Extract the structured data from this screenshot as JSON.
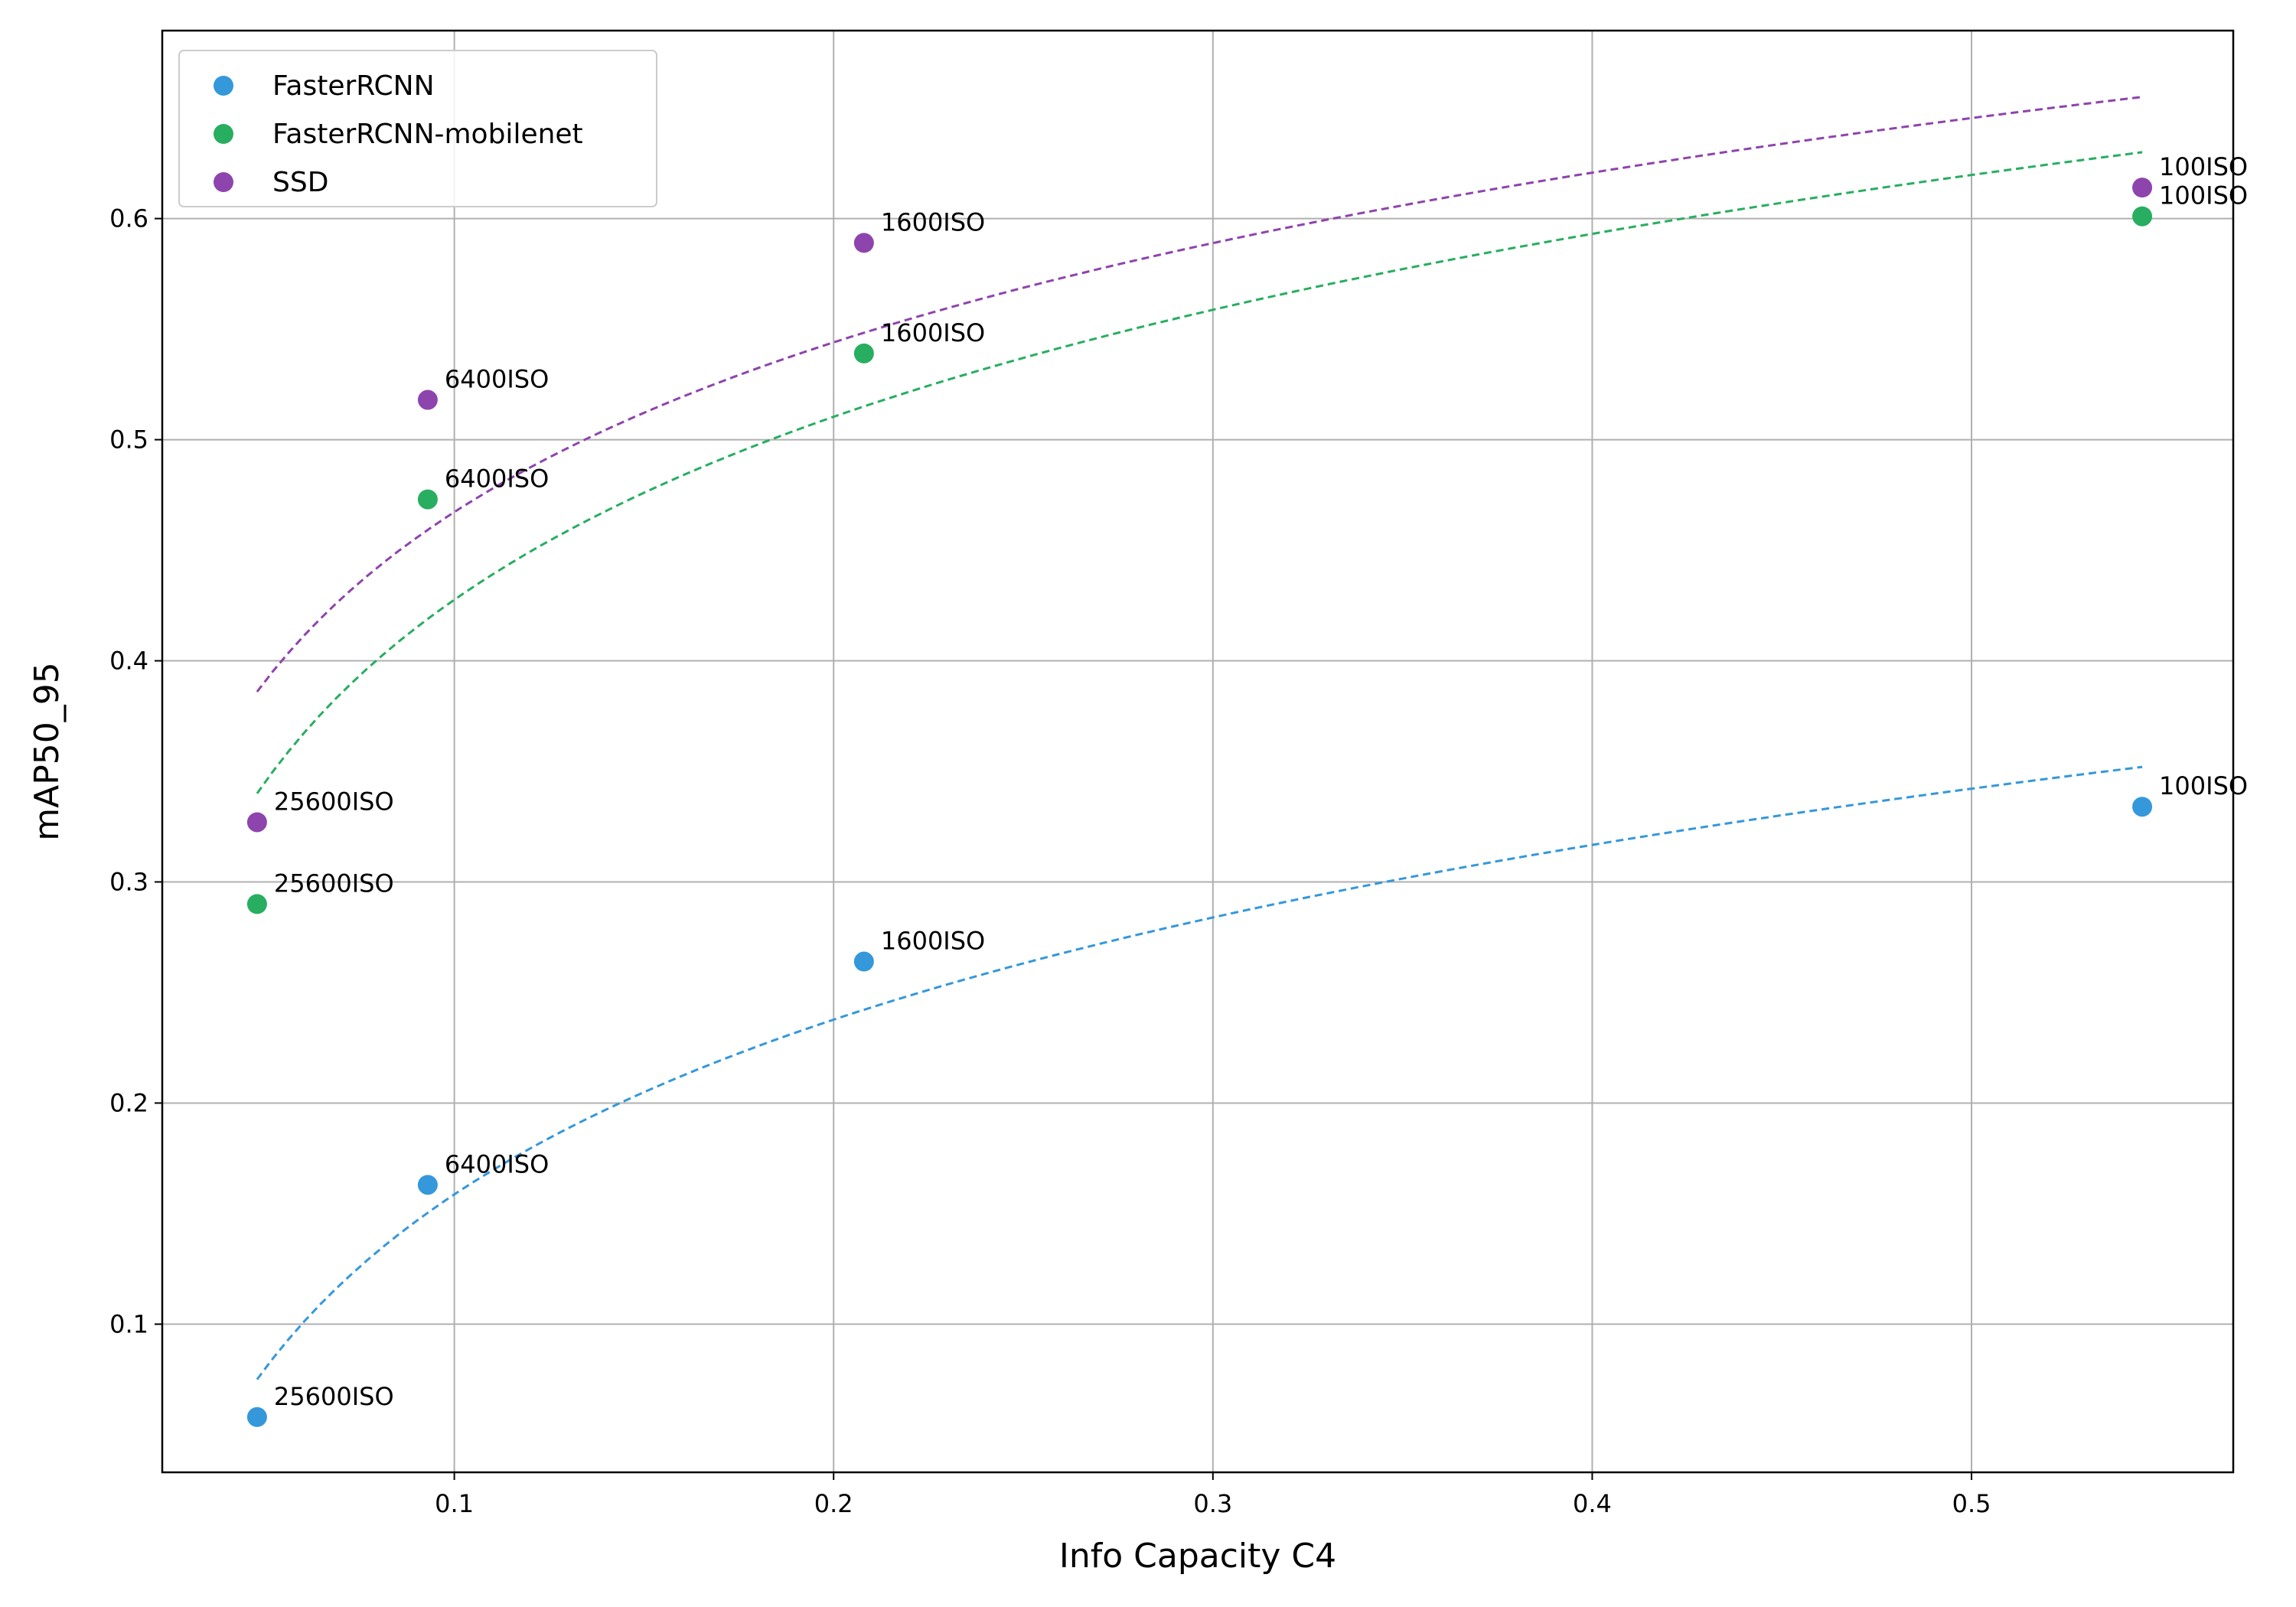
{
  "chart_data": {
    "type": "scatter",
    "title": "",
    "xlabel": "Info Capacity C4",
    "ylabel": "mAP50_95",
    "xlim": [
      0.023,
      0.569
    ],
    "ylim": [
      0.033,
      0.685
    ],
    "xticks": [
      0.1,
      0.2,
      0.3,
      0.4,
      0.5
    ],
    "xtick_labels": [
      "0.1",
      "0.2",
      "0.3",
      "0.4",
      "0.5"
    ],
    "yticks": [
      0.1,
      0.2,
      0.3,
      0.4,
      0.5,
      0.6
    ],
    "ytick_labels": [
      "0.1",
      "0.2",
      "0.3",
      "0.4",
      "0.5",
      "0.6"
    ],
    "grid": true,
    "legend_position": "top-left",
    "series": [
      {
        "name": "FasterRCNN",
        "color": "#3498db",
        "points": [
          {
            "x": 0.048,
            "y": 0.058,
            "label": "25600ISO"
          },
          {
            "x": 0.093,
            "y": 0.163,
            "label": "6400ISO"
          },
          {
            "x": 0.208,
            "y": 0.264,
            "label": "1600ISO"
          },
          {
            "x": 0.545,
            "y": 0.334,
            "label": "100ISO"
          }
        ],
        "trend": {
          "kind": "log",
          "x_from": 0.048,
          "x_to": 0.545,
          "y_at_from": 0.075,
          "y_at_to": 0.352
        }
      },
      {
        "name": "FasterRCNN-mobilenet",
        "color": "#27ae60",
        "points": [
          {
            "x": 0.048,
            "y": 0.29,
            "label": "25600ISO"
          },
          {
            "x": 0.093,
            "y": 0.473,
            "label": "6400ISO"
          },
          {
            "x": 0.208,
            "y": 0.539,
            "label": "1600ISO"
          },
          {
            "x": 0.545,
            "y": 0.601,
            "label": "100ISO"
          }
        ],
        "trend": {
          "kind": "log",
          "x_from": 0.048,
          "x_to": 0.545,
          "y_at_from": 0.34,
          "y_at_to": 0.63
        }
      },
      {
        "name": "SSD",
        "color": "#8e44ad",
        "points": [
          {
            "x": 0.048,
            "y": 0.327,
            "label": "25600ISO"
          },
          {
            "x": 0.093,
            "y": 0.518,
            "label": "6400ISO"
          },
          {
            "x": 0.208,
            "y": 0.589,
            "label": "1600ISO"
          },
          {
            "x": 0.545,
            "y": 0.614,
            "label": "100ISO"
          }
        ],
        "trend": {
          "kind": "log",
          "x_from": 0.048,
          "x_to": 0.545,
          "y_at_from": 0.386,
          "y_at_to": 0.655
        }
      }
    ]
  }
}
